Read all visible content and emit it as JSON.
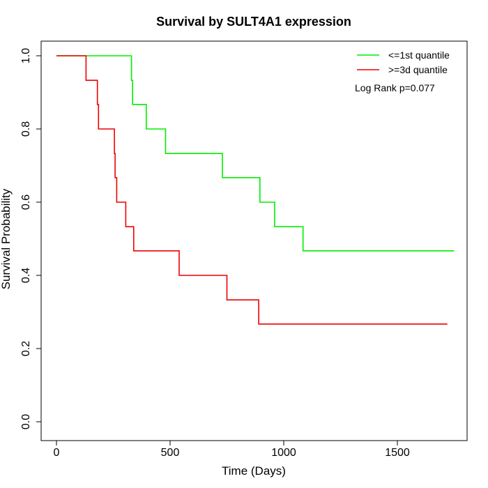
{
  "chart_data": {
    "type": "line",
    "title": "Survival by SULT4A1 expression",
    "xlabel": "Time (Days)",
    "ylabel": "Survival Probability",
    "xlim": [
      0,
      1750
    ],
    "ylim": [
      0,
      1
    ],
    "x_ticks": [
      "0",
      "500",
      "1000",
      "1500"
    ],
    "x_tick_values": [
      0,
      500,
      1000,
      1500
    ],
    "y_ticks": [
      "0.0",
      "0.2",
      "0.4",
      "0.6",
      "0.8",
      "1.0"
    ],
    "y_tick_values": [
      0,
      0.2,
      0.4,
      0.6,
      0.8,
      1.0
    ],
    "grid": false,
    "legend_position": "top-right",
    "annotation": "Log Rank p=0.077",
    "series": [
      {
        "name": "<=1st quantile",
        "color": "#00ee00",
        "step_points": [
          [
            0,
            1.0
          ],
          [
            330,
            1.0
          ],
          [
            330,
            0.933
          ],
          [
            335,
            0.933
          ],
          [
            335,
            0.867
          ],
          [
            395,
            0.867
          ],
          [
            395,
            0.8
          ],
          [
            480,
            0.8
          ],
          [
            480,
            0.733
          ],
          [
            730,
            0.733
          ],
          [
            730,
            0.667
          ],
          [
            895,
            0.667
          ],
          [
            895,
            0.6
          ],
          [
            960,
            0.6
          ],
          [
            960,
            0.533
          ],
          [
            1085,
            0.533
          ],
          [
            1085,
            0.467
          ],
          [
            1750,
            0.467
          ]
        ]
      },
      {
        "name": ">=3d quantile",
        "color": "#ee0000",
        "step_points": [
          [
            0,
            1.0
          ],
          [
            130,
            1.0
          ],
          [
            130,
            0.933
          ],
          [
            180,
            0.933
          ],
          [
            180,
            0.867
          ],
          [
            185,
            0.867
          ],
          [
            185,
            0.8
          ],
          [
            255,
            0.8
          ],
          [
            255,
            0.733
          ],
          [
            258,
            0.733
          ],
          [
            258,
            0.667
          ],
          [
            265,
            0.667
          ],
          [
            265,
            0.6
          ],
          [
            305,
            0.6
          ],
          [
            305,
            0.533
          ],
          [
            340,
            0.533
          ],
          [
            340,
            0.467
          ],
          [
            540,
            0.467
          ],
          [
            540,
            0.4
          ],
          [
            750,
            0.4
          ],
          [
            750,
            0.333
          ],
          [
            890,
            0.333
          ],
          [
            890,
            0.267
          ],
          [
            1720,
            0.267
          ]
        ]
      }
    ]
  }
}
